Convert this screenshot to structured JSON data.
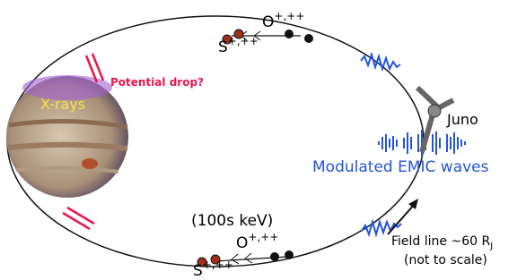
{
  "labels": {
    "xrays": "X-rays",
    "potential_drop": "Potential drop?",
    "top_ions": {
      "o": "O",
      "o_charge": "+,++",
      "s": "S",
      "s_charge": "+,++"
    },
    "bottom_ions": {
      "energy": "(100s keV)",
      "o": "O",
      "o_charge": "+,++",
      "s": "S",
      "s_charge": "+,++"
    },
    "juno": "Juno",
    "waves": "Modulated EMIC waves",
    "field_line": {
      "text": "Field line ~60 R",
      "subscript": "J",
      "note": "(not to scale)"
    }
  }
}
